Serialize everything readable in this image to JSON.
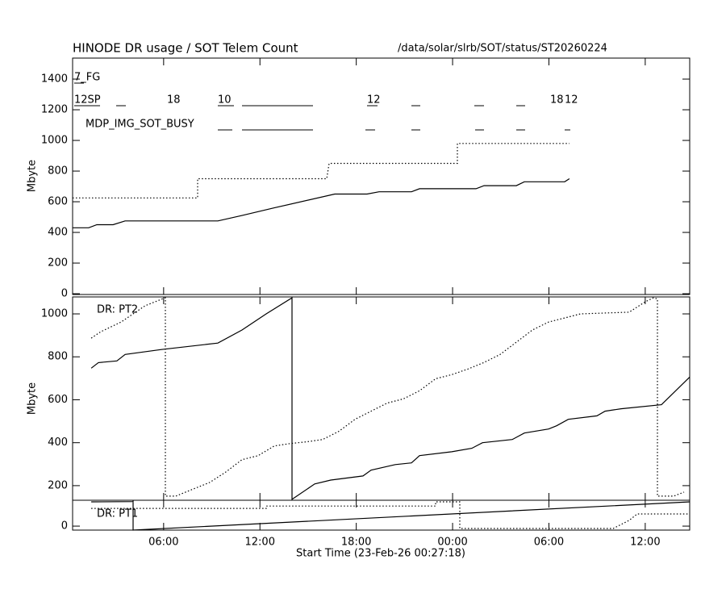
{
  "chart_data": [
    {
      "type": "line",
      "title": "HINODE DR usage / SOT Telem Count",
      "subtitle": "/data/solar/slrb/SOT/status/ST20260224",
      "ylabel": "Mbyte",
      "ylim": [
        -5,
        1537
      ],
      "yticks": [
        0,
        200,
        400,
        600,
        800,
        1000,
        1200,
        1400
      ],
      "xlim": [
        0.33,
        38.77
      ],
      "annotations": [
        "7_FG",
        "12SP",
        "18",
        "10",
        "12",
        "18",
        "12",
        "MDP_IMG_SOT_BUSY"
      ],
      "series": [
        {
          "color": "#000000",
          "style": "solid",
          "x": [
            0.33,
            1.33,
            1.84,
            2.85,
            3.6,
            9.38,
            10.88,
            12.89,
            16.66,
            18.67,
            19.42,
            21.44,
            21.94,
            25.46,
            25.96,
            27.97,
            28.47,
            30.98,
            31.28
          ],
          "values": [
            430,
            430,
            450,
            450,
            475,
            475,
            510,
            560,
            650,
            650,
            665,
            665,
            685,
            685,
            705,
            705,
            730,
            730,
            750
          ]
        },
        {
          "color": "#000000",
          "style": "dotted",
          "x": [
            0.33,
            8.12,
            8.12,
            16.16,
            16.31,
            24.3,
            24.3,
            31.28
          ],
          "values": [
            625,
            625,
            750,
            750,
            850,
            850,
            980,
            980
          ]
        }
      ]
    },
    {
      "type": "line",
      "ylabel": "Mbyte",
      "label": "DR: PT2",
      "ylim": [
        132,
        1079
      ],
      "yticks": [
        200,
        400,
        600,
        800,
        1000
      ],
      "xlim": [
        0.33,
        38.77
      ],
      "series": [
        {
          "color": "#000000",
          "style": "solid",
          "x": [
            1.49,
            1.94,
            3.09,
            3.6,
            5.86,
            9.38,
            10.88,
            12.39,
            14.0,
            14.0,
            15.41,
            16.41,
            18.42,
            18.92,
            20.43,
            21.44,
            21.94,
            23.95,
            25.2,
            25.86,
            27.72,
            28.47,
            29.98,
            30.48,
            31.21,
            32.99,
            33.5,
            34.5,
            37.01,
            38.77
          ],
          "values": [
            747,
            773,
            781,
            811,
            834,
            864,
            925,
            1000,
            1075,
            136,
            208,
            226,
            245,
            272,
            298,
            306,
            340,
            358,
            374,
            400,
            415,
            445,
            464,
            479,
            509,
            525,
            547,
            558,
            577,
            706
          ]
        },
        {
          "color": "#000000",
          "style": "dotted",
          "x": [
            1.49,
            2.09,
            3.35,
            4.1,
            4.85,
            5.86,
            6.11,
            6.11,
            6.76,
            7.37,
            8.87,
            9.88,
            10.88,
            11.89,
            12.89,
            13.9,
            14.9,
            15.91,
            16.91,
            17.92,
            18.92,
            19.93,
            20.93,
            21.94,
            22.94,
            23.95,
            24.95,
            25.96,
            26.96,
            27.97,
            28.97,
            29.98,
            30.98,
            31.97,
            35.0,
            36.01,
            36.51,
            36.76,
            36.76,
            37.77,
            38.42
          ],
          "values": [
            887,
            917,
            962,
            1000,
            1038,
            1068,
            1075,
            151,
            151,
            170,
            215,
            264,
            321,
            340,
            385,
            396,
            404,
            415,
            453,
            509,
            547,
            585,
            604,
            642,
            698,
            717,
            743,
            774,
            811,
            868,
            925,
            962,
            981,
            1000,
            1008,
            1057,
            1075,
            1070,
            151,
            151,
            170
          ]
        }
      ]
    },
    {
      "type": "line",
      "label": "DR: PT1",
      "xlabel": "Start Time (23-Feb-26 00:27:18)",
      "ylim": [
        -20,
        130
      ],
      "yticks": [
        0
      ],
      "xlim": [
        0.33,
        38.77
      ],
      "xticks": [
        {
          "value": 6,
          "label": "06:00"
        },
        {
          "value": 12,
          "label": "12:00"
        },
        {
          "value": 18,
          "label": "18:00"
        },
        {
          "value": 24,
          "label": "00:00"
        },
        {
          "value": 30,
          "label": "06:00"
        },
        {
          "value": 36,
          "label": "12:00"
        }
      ],
      "series": [
        {
          "color": "#000000",
          "style": "solid",
          "x": [
            1.49,
            4.1,
            4.1,
            4.1,
            38.77
          ],
          "values": [
            122,
            123,
            130,
            -20,
            122
          ]
        },
        {
          "color": "#000000",
          "style": "dotted",
          "x": [
            1.49,
            12.39,
            12.39,
            22.94,
            22.94,
            24.45,
            24.45,
            34.0,
            35.0,
            35.5,
            38.77
          ],
          "values": [
            89,
            89,
            101,
            101,
            122,
            122,
            -12,
            -12,
            29,
            61,
            61
          ]
        }
      ]
    }
  ]
}
